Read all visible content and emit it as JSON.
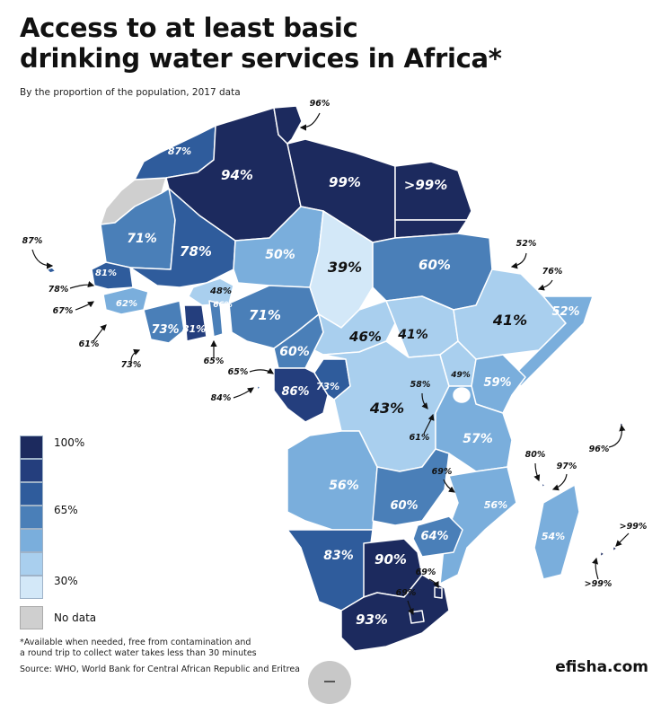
{
  "title_line1": "Access to at least basic",
  "title_line2": "drinking water services in Africa*",
  "subtitle": "By the proportion of the population, 2017 data",
  "legend": {
    "labels": [
      "100%",
      "65%",
      "30%"
    ],
    "no_data": "No data",
    "colors": [
      "#1c2a5e",
      "#243e7d",
      "#2f5c9c",
      "#4a7fb8",
      "#7aaedc",
      "#a9cfee",
      "#d3e8f8"
    ]
  },
  "footnote_line1": "*Available when needed, free from contamination and",
  "footnote_line2": "a round trip to collect water takes less than 30 minutes",
  "source": "Source: WHO, World Bank for Central African Republic and Eritrea",
  "brand": "efisha.com",
  "colors": {
    "no_data": "#cfcfcf",
    "border": "#ffffff",
    "label_light": "#ffffff",
    "label_dark": "#111111"
  },
  "regions": [
    {
      "name": "morocco",
      "value": "87%",
      "color": "#2f5c9c",
      "label_color": "light"
    },
    {
      "name": "algeria",
      "value": "94%",
      "color": "#1c2a5e",
      "label_color": "light"
    },
    {
      "name": "tunisia",
      "value": "96%",
      "color": "#1c2a5e",
      "label_color": "light"
    },
    {
      "name": "libya",
      "value": "99%",
      "color": "#1c2a5e",
      "label_color": "light"
    },
    {
      "name": "egypt",
      "value": ">99%",
      "color": "#1c2a5e",
      "label_color": "light"
    },
    {
      "name": "mauritania",
      "value": "71%",
      "color": "#4a7fb8",
      "label_color": "light"
    },
    {
      "name": "mali",
      "value": "78%",
      "color": "#2f5c9c",
      "label_color": "light"
    },
    {
      "name": "niger",
      "value": "50%",
      "color": "#7aaedc",
      "label_color": "light"
    },
    {
      "name": "chad",
      "value": "39%",
      "color": "#d3e8f8",
      "label_color": "dark"
    },
    {
      "name": "sudan",
      "value": "60%",
      "color": "#4a7fb8",
      "label_color": "light"
    },
    {
      "name": "senegal",
      "value": "81%",
      "color": "#2f5c9c",
      "label_color": "light"
    },
    {
      "name": "burkina",
      "value": "48%",
      "color": "#a9cfee",
      "label_color": "dark"
    },
    {
      "name": "guinea",
      "value": "62%",
      "color": "#7aaedc",
      "label_color": "light"
    },
    {
      "name": "ivory-coast",
      "value": "73%",
      "color": "#4a7fb8",
      "label_color": "light"
    },
    {
      "name": "ghana",
      "value": "81%",
      "color": "#243e7d",
      "label_color": "light"
    },
    {
      "name": "benin",
      "value": "66%",
      "color": "#4a7fb8",
      "label_color": "light"
    },
    {
      "name": "nigeria",
      "value": "71%",
      "color": "#4a7fb8",
      "label_color": "light"
    },
    {
      "name": "cameroon",
      "value": "60%",
      "color": "#4a7fb8",
      "label_color": "light"
    },
    {
      "name": "car",
      "value": "46%",
      "color": "#a9cfee",
      "label_color": "dark"
    },
    {
      "name": "south-sudan",
      "value": "41%",
      "color": "#a9cfee",
      "label_color": "dark"
    },
    {
      "name": "ethiopia",
      "value": "41%",
      "color": "#a9cfee",
      "label_color": "dark"
    },
    {
      "name": "somalia",
      "value": "52%",
      "color": "#7aaedc",
      "label_color": "light"
    },
    {
      "name": "gabon-congo",
      "value": "86%",
      "color": "#243e7d",
      "label_color": "light"
    },
    {
      "name": "congo",
      "value": "73%",
      "color": "#2f5c9c",
      "label_color": "light"
    },
    {
      "name": "drc",
      "value": "43%",
      "color": "#a9cfee",
      "label_color": "dark"
    },
    {
      "name": "uganda",
      "value": "49%",
      "color": "#a9cfee",
      "label_color": "dark"
    },
    {
      "name": "kenya",
      "value": "59%",
      "color": "#7aaedc",
      "label_color": "light"
    },
    {
      "name": "tanzania",
      "value": "57%",
      "color": "#7aaedc",
      "label_color": "light"
    },
    {
      "name": "angola",
      "value": "56%",
      "color": "#7aaedc",
      "label_color": "light"
    },
    {
      "name": "zambia",
      "value": "60%",
      "color": "#4a7fb8",
      "label_color": "light"
    },
    {
      "name": "mozambique",
      "value": "56%",
      "color": "#7aaedc",
      "label_color": "light"
    },
    {
      "name": "zimbabwe",
      "value": "64%",
      "color": "#4a7fb8",
      "label_color": "light"
    },
    {
      "name": "madagascar",
      "value": "54%",
      "color": "#7aaedc",
      "label_color": "light"
    },
    {
      "name": "namibia",
      "value": "83%",
      "color": "#2f5c9c",
      "label_color": "light"
    },
    {
      "name": "botswana",
      "value": "90%",
      "color": "#1c2a5e",
      "label_color": "light"
    },
    {
      "name": "south-africa",
      "value": "93%",
      "color": "#1c2a5e",
      "label_color": "light"
    }
  ],
  "callouts": [
    {
      "name": "tunisia",
      "value": "96%"
    },
    {
      "name": "cabo-verde",
      "value": "87%"
    },
    {
      "name": "gambia",
      "value": "78%"
    },
    {
      "name": "guinea-bissau",
      "value": "67%"
    },
    {
      "name": "sierra-leone",
      "value": "61%"
    },
    {
      "name": "liberia",
      "value": "73%"
    },
    {
      "name": "togo",
      "value": "65%"
    },
    {
      "name": "sao-tome",
      "value": "84%"
    },
    {
      "name": "equatorial-guinea",
      "value": "65%"
    },
    {
      "name": "eritrea",
      "value": "52%"
    },
    {
      "name": "djibouti",
      "value": "76%"
    },
    {
      "name": "rwanda",
      "value": "58%"
    },
    {
      "name": "burundi",
      "value": "61%"
    },
    {
      "name": "malawi",
      "value": "69%"
    },
    {
      "name": "eswatini",
      "value": "69%"
    },
    {
      "name": "lesotho",
      "value": "69%"
    },
    {
      "name": "comoros",
      "value": "80%"
    },
    {
      "name": "seychelles",
      "value": "96%"
    },
    {
      "name": "comoros-97",
      "value": "97%"
    },
    {
      "name": "mauritius",
      "value": ">99%"
    },
    {
      "name": "reunion",
      "value": ">99%"
    }
  ]
}
